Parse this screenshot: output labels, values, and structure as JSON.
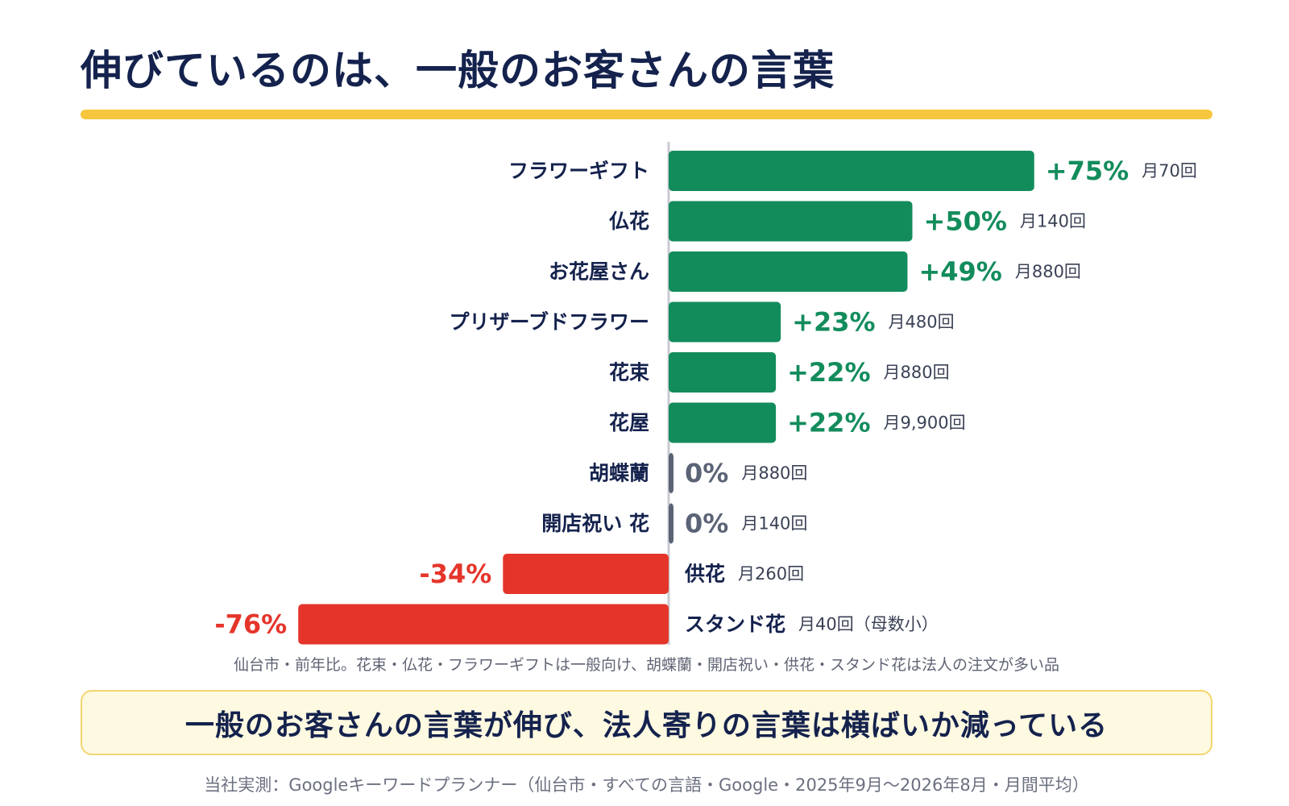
{
  "title": "伸びているのは、一般のお客さんの言葉",
  "chart_data": {
    "type": "bar",
    "orientation": "horizontal",
    "categories": [
      "フラワーギフト",
      "仏花",
      "お花屋さん",
      "プリザーブドフラワー",
      "花束",
      "花屋",
      "胡蝶蘭",
      "開店祝い 花",
      "供花",
      "スタンド花"
    ],
    "values": [
      75,
      50,
      49,
      23,
      22,
      22,
      0,
      0,
      -34,
      -76
    ],
    "value_labels": [
      "+75%",
      "+50%",
      "+49%",
      "+23%",
      "+22%",
      "+22%",
      "0%",
      "0%",
      "-34%",
      "-76%"
    ],
    "volumes": [
      "月70回",
      "月140回",
      "月880回",
      "月480回",
      "月880回",
      "月9,900回",
      "月880回",
      "月140回",
      "月260回",
      "月40回（母数小）"
    ],
    "unit": "%",
    "xlim": [
      -76,
      75
    ],
    "colors": {
      "positive": "#138c5c",
      "zero": "#5b6376",
      "negative": "#e5352a",
      "label": "#14224d",
      "axis": "#c9cbd0"
    }
  },
  "note": "仙台市・前年比。花束・仏花・フラワーギフトは一般向け、胡蝶蘭・開店祝い・供花・スタンド花は法人の注文が多い品",
  "callout": "一般のお客さんの言葉が伸び、法人寄りの言葉は横ばいか減っている",
  "source": "当社実測：Googleキーワードプランナー（仙台市・すべての言語・Google・2025年9月〜2026年8月・月間平均）"
}
